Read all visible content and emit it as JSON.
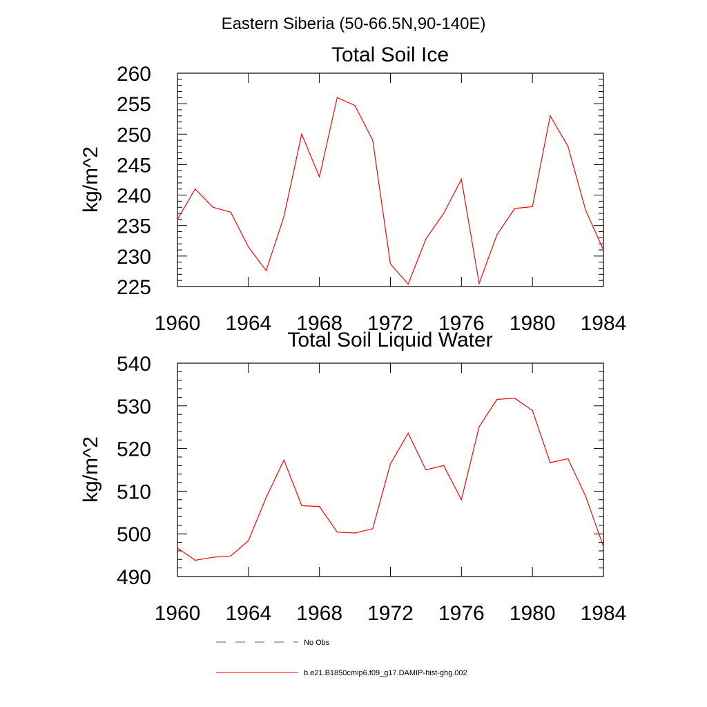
{
  "figure": {
    "title": "Eastern Siberia (50-66.5N,90-140E)"
  },
  "chart_data": [
    {
      "type": "line",
      "title": "Total Soil Ice",
      "xlabel": "",
      "ylabel": "kg/m^2",
      "xlim": [
        1960,
        1984
      ],
      "ylim": [
        225,
        260
      ],
      "xticks": [
        "1960",
        "1964",
        "1968",
        "1972",
        "1976",
        "1980",
        "1984"
      ],
      "yticks": [
        "225",
        "230",
        "235",
        "240",
        "245",
        "250",
        "255",
        "260"
      ],
      "grid": false,
      "series": [
        {
          "name": "b.e21.B1850cmip6.f09_g17.DAMIP-hist-ghg.002",
          "color": "#ff0000",
          "x": [
            1960,
            1961,
            1962,
            1963,
            1964,
            1965,
            1966,
            1967,
            1968,
            1969,
            1970,
            1971,
            1972,
            1973,
            1974,
            1975,
            1976,
            1977,
            1978,
            1979,
            1980,
            1981,
            1982,
            1983,
            1984
          ],
          "y": [
            236,
            241,
            238,
            237.2,
            231.5,
            227.6,
            236.5,
            250,
            243,
            256,
            254.7,
            249,
            228.7,
            225.4,
            232.8,
            237,
            242.6,
            225.5,
            233.5,
            237.8,
            238.1,
            253,
            248,
            237.5,
            231
          ]
        }
      ]
    },
    {
      "type": "line",
      "title": "Total Soil Liquid Water",
      "xlabel": "",
      "ylabel": "kg/m^2",
      "xlim": [
        1960,
        1984
      ],
      "ylim": [
        490,
        540
      ],
      "xticks": [
        "1960",
        "1964",
        "1968",
        "1972",
        "1976",
        "1980",
        "1984"
      ],
      "yticks": [
        "490",
        "500",
        "510",
        "520",
        "530",
        "540"
      ],
      "grid": false,
      "series": [
        {
          "name": "b.e21.B1850cmip6.f09_g17.DAMIP-hist-ghg.002",
          "color": "#ff0000",
          "x": [
            1960,
            1961,
            1962,
            1963,
            1964,
            1965,
            1966,
            1967,
            1968,
            1969,
            1970,
            1971,
            1972,
            1973,
            1974,
            1975,
            1976,
            1977,
            1978,
            1979,
            1980,
            1981,
            1982,
            1983,
            1984
          ],
          "y": [
            496.7,
            493.8,
            494.5,
            494.8,
            498.4,
            508.5,
            517.3,
            506.6,
            506.4,
            500.4,
            500.2,
            501.2,
            516.4,
            523.6,
            515,
            516,
            508,
            525.1,
            531.5,
            531.8,
            528.9,
            516.7,
            517.6,
            508.8,
            497
          ]
        }
      ]
    }
  ],
  "legend": {
    "placement": "bottom-center",
    "items": [
      {
        "label": "No Obs",
        "color": "#5a5a8a",
        "style": "dashed"
      },
      {
        "label": "b.e21.B1850cmip6.f09_g17.DAMIP-hist-ghg.002",
        "color": "#ff0000",
        "style": "solid"
      }
    ]
  }
}
